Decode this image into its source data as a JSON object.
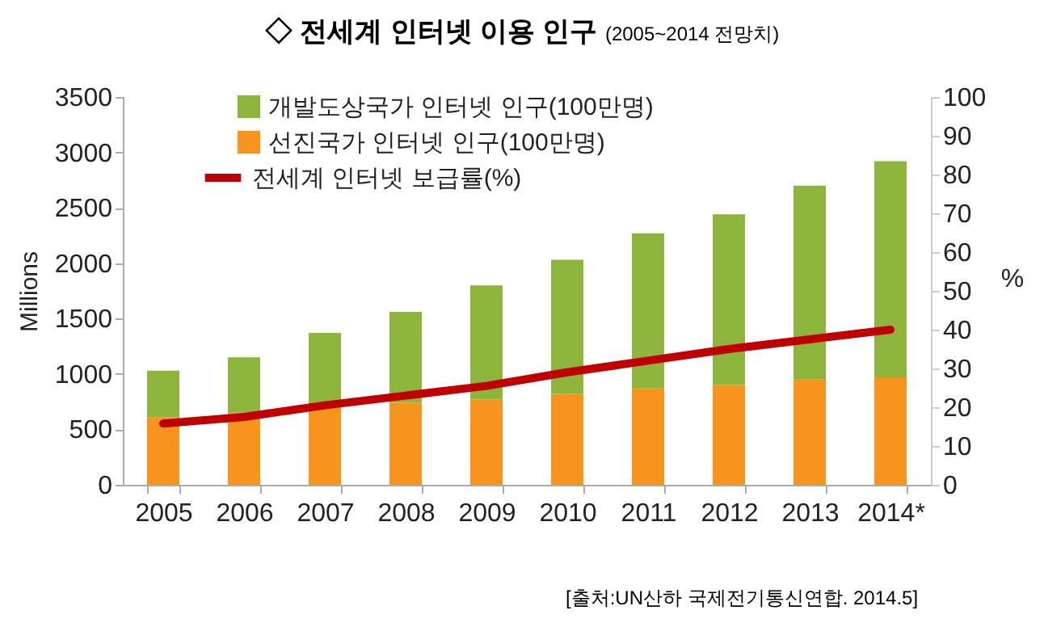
{
  "chart_data": {
    "type": "bar",
    "title": "◇ 전세계 인터넷 이용 인구",
    "subtitle": "(2005~2014 전망치)",
    "ylabel": "Millions",
    "y2label": "%",
    "categories": [
      "2005",
      "2006",
      "2007",
      "2008",
      "2009",
      "2010",
      "2011",
      "2012",
      "2013",
      "2014*"
    ],
    "stacked": true,
    "series": [
      {
        "name": "선진국가 인터넷 인구(100만명)",
        "color": "#f7941d",
        "values": [
          610,
          650,
          700,
          740,
          770,
          820,
          870,
          900,
          950,
          970
        ]
      },
      {
        "name": "개발도상국가 인터넷 인구(100만명)",
        "color": "#8db53c",
        "values": [
          420,
          500,
          670,
          820,
          1030,
          1210,
          1400,
          1540,
          1750,
          1950
        ]
      },
      {
        "name": "전세계 인터넷 보급률(%)",
        "type": "line",
        "axis": "y2",
        "color": "#c00000",
        "values": [
          15.8,
          17.5,
          20.5,
          23,
          25.5,
          29,
          32,
          35,
          37.5,
          40
        ]
      }
    ],
    "ylim": [
      0,
      3500
    ],
    "yticks": [
      0,
      500,
      1000,
      1500,
      2000,
      2500,
      3000,
      3500
    ],
    "y2lim": [
      0,
      100
    ],
    "y2ticks": [
      0,
      10,
      20,
      30,
      40,
      50,
      60,
      70,
      80,
      90,
      100
    ],
    "grid": false,
    "legend": "top left",
    "annotations": [
      "[출처:UN산하 국제전기통신연합. 2014.5]"
    ]
  }
}
